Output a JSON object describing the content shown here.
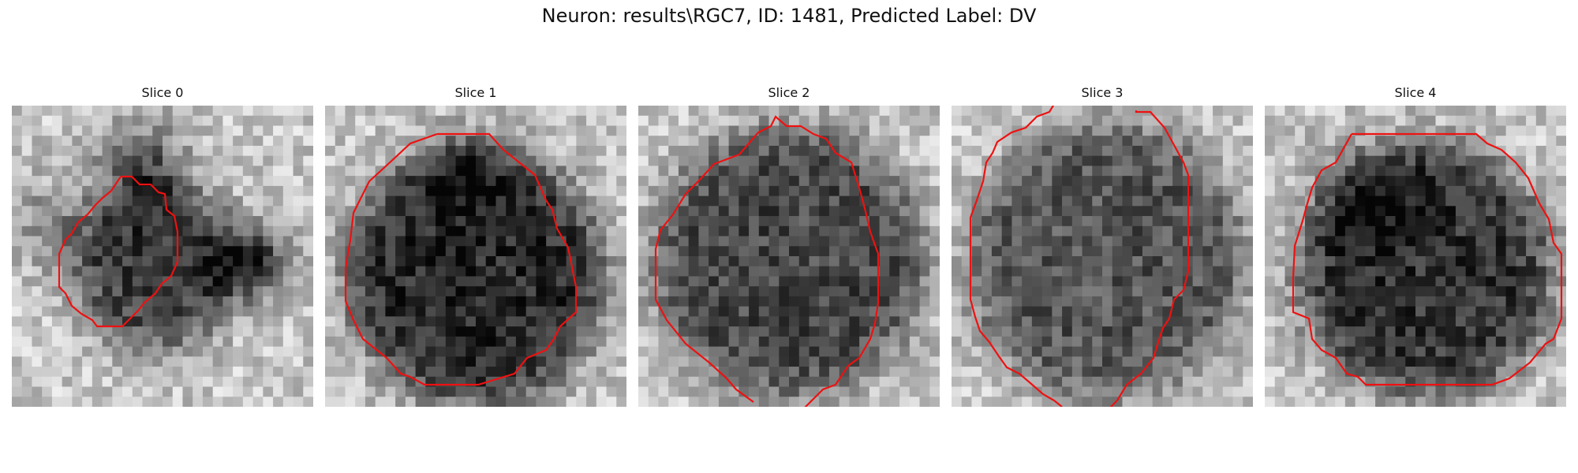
{
  "figure": {
    "title": "Neuron: results\\RGC7, ID: 1481, Predicted Label: DV"
  },
  "colors": {
    "contour": "#ee1111",
    "background": "#ffffff"
  },
  "panels": [
    {
      "title": "Slice 0"
    },
    {
      "title": "Slice 1"
    },
    {
      "title": "Slice 2"
    },
    {
      "title": "Slice 3"
    },
    {
      "title": "Slice 4"
    }
  ]
}
